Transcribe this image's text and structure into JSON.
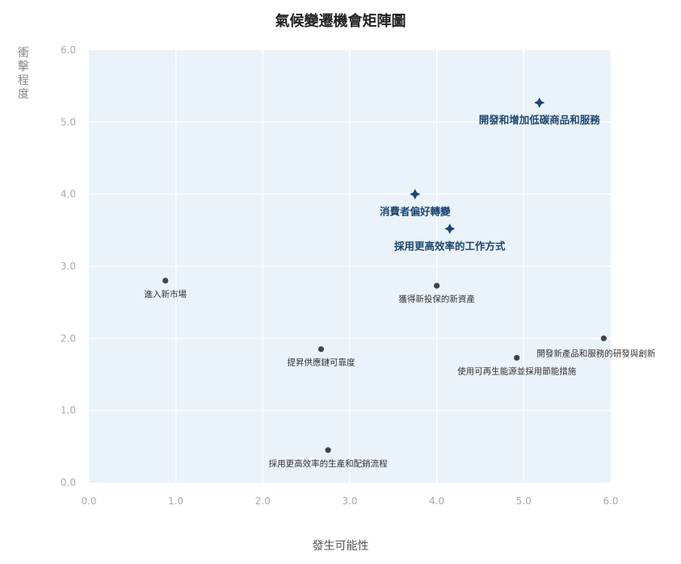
{
  "chart_data": {
    "type": "scatter",
    "title": "氣候變遷機會矩陣圖",
    "xlabel": "發生可能性",
    "ylabel": "衝擊程度",
    "xlim": [
      0,
      6
    ],
    "ylim": [
      0,
      6
    ],
    "xticks": [
      "0.0",
      "1.0",
      "2.0",
      "3.0",
      "4.0",
      "5.0",
      "6.0"
    ],
    "yticks": [
      "0.0",
      "1.0",
      "2.0",
      "3.0",
      "4.0",
      "5.0",
      "6.0"
    ],
    "grid": true,
    "points": [
      {
        "label": "開發和增加低碳商品和服務",
        "x": 5.18,
        "y": 5.27,
        "highlight": true
      },
      {
        "label": "消費者偏好轉變",
        "x": 3.75,
        "y": 4.0,
        "highlight": true
      },
      {
        "label": "採用更高效率的工作方式",
        "x": 4.15,
        "y": 3.52,
        "highlight": true
      },
      {
        "label": "進入新市場",
        "x": 0.88,
        "y": 2.8,
        "highlight": false
      },
      {
        "label": "獲得新投保的新資產",
        "x": 4.0,
        "y": 2.73,
        "highlight": false
      },
      {
        "label": "開發新產品和服務的研發與創新",
        "x": 5.92,
        "y": 2.0,
        "highlight": false
      },
      {
        "label": "提昇供應鏈可靠度",
        "x": 2.67,
        "y": 1.85,
        "highlight": false
      },
      {
        "label": "使用可再生能源並採用節能措施",
        "x": 4.92,
        "y": 1.73,
        "highlight": false
      },
      {
        "label": "採用更高效率的生產和配銷流程",
        "x": 2.75,
        "y": 0.45,
        "highlight": false
      }
    ],
    "colors": {
      "plot_background": "#eaf2fa",
      "grid": "#ffffff",
      "point": "#444444",
      "highlight": "#1b4673"
    }
  }
}
